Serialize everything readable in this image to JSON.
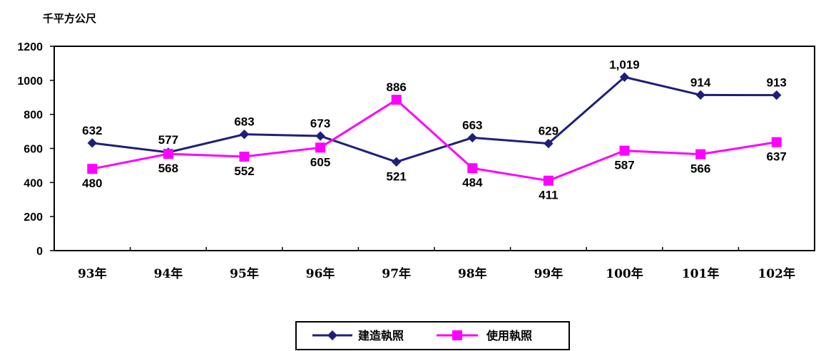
{
  "chart_data": {
    "type": "line",
    "unit_label": "千平方公尺",
    "categories": [
      "93年",
      "94年",
      "95年",
      "96年",
      "97年",
      "98年",
      "99年",
      "100年",
      "101年",
      "102年"
    ],
    "ylim": [
      0,
      1200
    ],
    "yticks": [
      "0",
      "200",
      "400",
      "600",
      "800",
      "1000",
      "1200"
    ],
    "grid": false,
    "legend_position": "bottom-center",
    "series": [
      {
        "name": "建造執照",
        "color": "#1F1F7A",
        "marker": "diamond",
        "values": [
          632,
          577,
          683,
          673,
          521,
          663,
          629,
          1019,
          914,
          913
        ],
        "labels": [
          "632",
          "577",
          "683",
          "673",
          "521",
          "663",
          "629",
          "1,019",
          "914",
          "913"
        ]
      },
      {
        "name": "使用執照",
        "color": "#FF00FF",
        "marker": "square",
        "values": [
          480,
          568,
          552,
          605,
          886,
          484,
          411,
          587,
          566,
          637
        ],
        "labels": [
          "480",
          "568",
          "552",
          "605",
          "886",
          "484",
          "411",
          "587",
          "566",
          "637"
        ]
      }
    ]
  }
}
